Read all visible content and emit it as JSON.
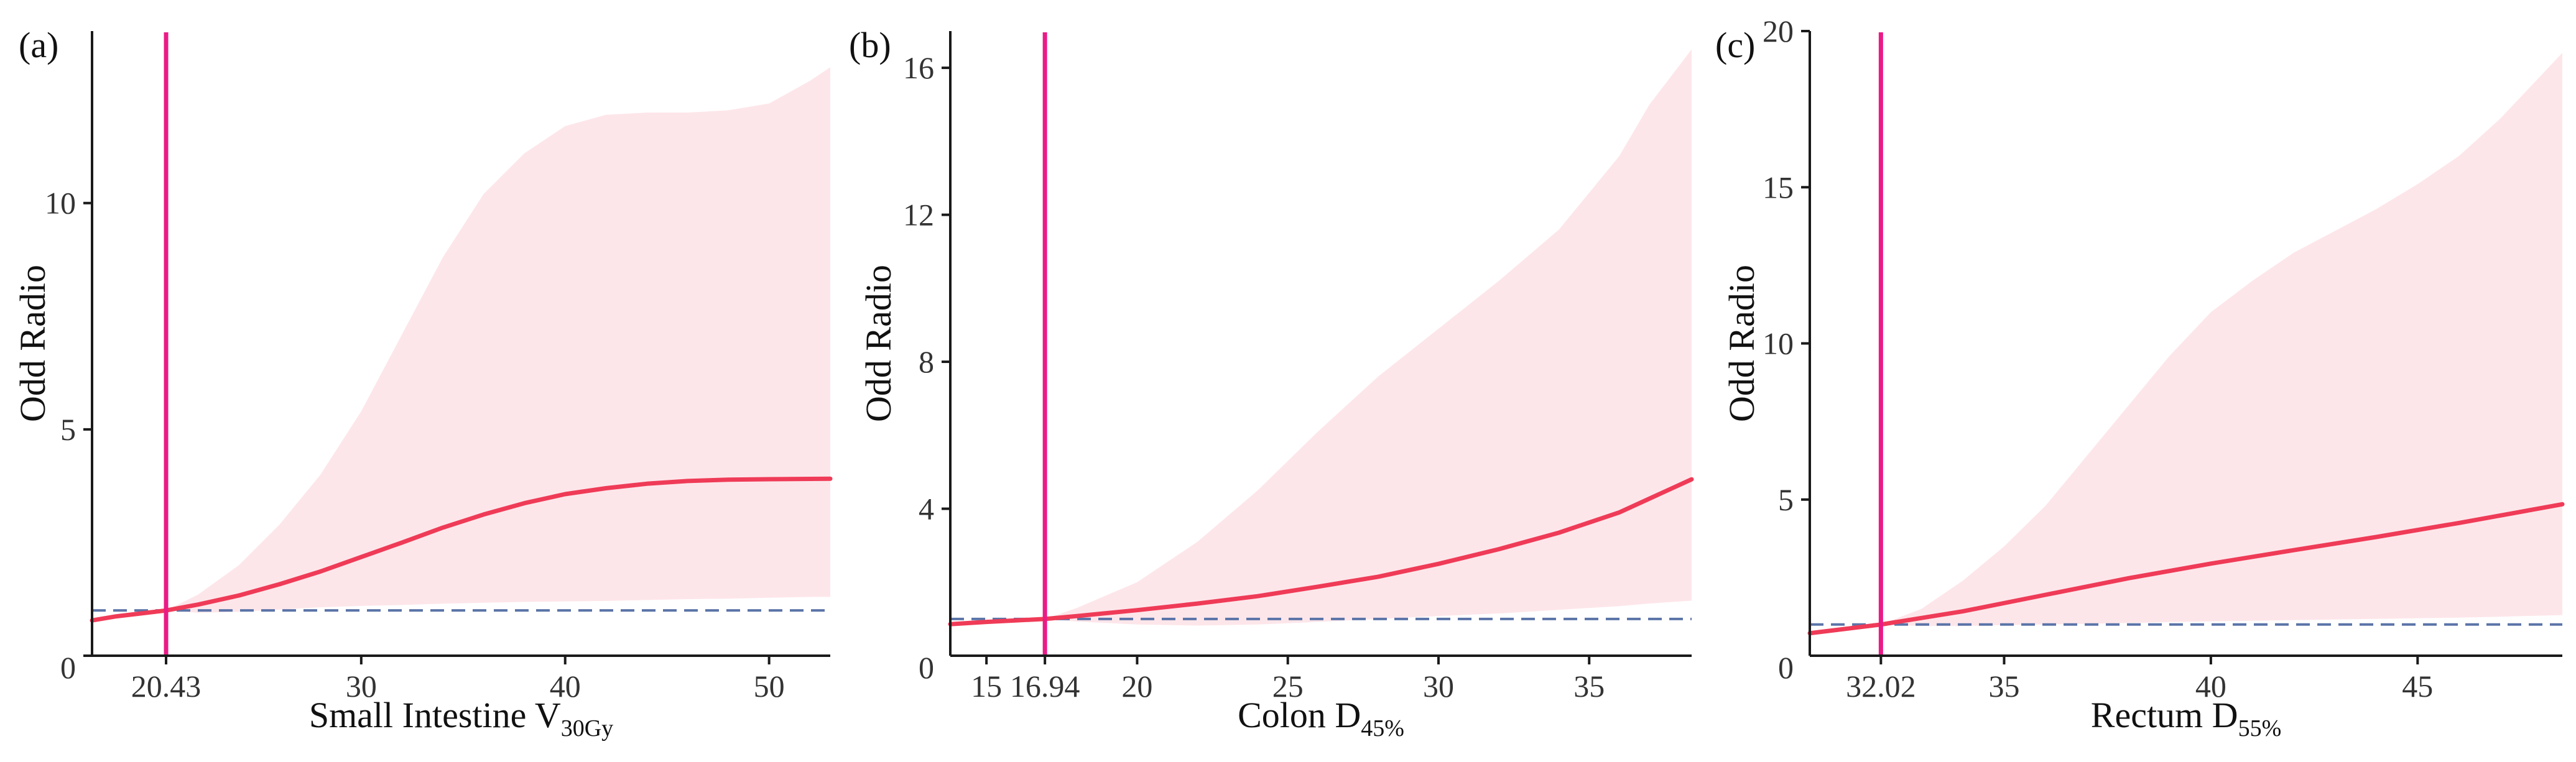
{
  "colors": {
    "curve": "#ef3b57",
    "band": "#fde6ea",
    "cutoff": "#ea1b87",
    "reference": "#5b74a8",
    "axis": "#1a1a1a"
  },
  "chart_data": [
    {
      "type": "line",
      "panel_label": "(a)",
      "xlabel_main": "Small Intestine V",
      "xlabel_sub": "30Gy",
      "ylabel": "Odd Radio",
      "xlim": [
        16.8,
        53
      ],
      "ylim": [
        0,
        13.8
      ],
      "xticks": [
        30,
        40,
        50
      ],
      "yticks": [
        0,
        5,
        10
      ],
      "zero_label": "0",
      "cutoff": 20.43,
      "cutoff_label": "20.43",
      "reference_y": 1,
      "series": [
        {
          "name": "Odd Radio",
          "x": [
            16.8,
            18,
            20.43,
            22,
            24,
            26,
            28,
            30,
            32,
            34,
            36,
            38,
            40,
            42,
            44,
            46,
            48,
            50,
            53
          ],
          "y": [
            0.78,
            0.87,
            1.0,
            1.13,
            1.33,
            1.58,
            1.86,
            2.18,
            2.5,
            2.83,
            3.12,
            3.37,
            3.57,
            3.7,
            3.8,
            3.86,
            3.89,
            3.9,
            3.91
          ]
        }
      ],
      "ci_band": {
        "x": [
          20.43,
          22,
          24,
          26,
          28,
          30,
          32,
          34,
          36,
          38,
          40,
          42,
          44,
          46,
          48,
          50,
          52,
          53
        ],
        "upper": [
          1.0,
          1.35,
          2.0,
          2.9,
          4.0,
          5.4,
          7.1,
          8.8,
          10.2,
          11.1,
          11.7,
          11.95,
          12.0,
          12.0,
          12.05,
          12.2,
          12.7,
          13.0
        ],
        "lower": [
          1.0,
          0.95,
          0.97,
          1.02,
          1.07,
          1.1,
          1.12,
          1.15,
          1.17,
          1.19,
          1.2,
          1.21,
          1.23,
          1.25,
          1.26,
          1.28,
          1.3,
          1.3
        ]
      }
    },
    {
      "type": "line",
      "panel_label": "(b)",
      "xlabel_main": "Colon D",
      "xlabel_sub": "45%",
      "ylabel": "Odd Radio",
      "xlim": [
        13.8,
        38.4
      ],
      "ylim": [
        0,
        17
      ],
      "xticks": [
        15,
        20,
        25,
        30,
        35
      ],
      "yticks": [
        4,
        8,
        12,
        16
      ],
      "zero_label": "0",
      "cutoff": 16.94,
      "cutoff_label": "16.94",
      "reference_y": 1,
      "series": [
        {
          "name": "Odd Radio",
          "x": [
            13.8,
            15,
            16.94,
            18,
            20,
            22,
            24,
            26,
            28,
            30,
            32,
            34,
            36,
            38.4
          ],
          "y": [
            0.86,
            0.92,
            1.0,
            1.08,
            1.24,
            1.42,
            1.62,
            1.88,
            2.15,
            2.5,
            2.9,
            3.35,
            3.9,
            4.8
          ]
        }
      ],
      "ci_band": {
        "x": [
          16.94,
          18,
          20,
          22,
          24,
          26,
          28,
          30,
          32,
          34,
          36,
          37,
          38.4
        ],
        "upper": [
          1.0,
          1.3,
          2.0,
          3.1,
          4.5,
          6.1,
          7.6,
          8.9,
          10.2,
          11.6,
          13.6,
          15.0,
          16.5
        ],
        "lower": [
          1.0,
          0.93,
          0.85,
          0.82,
          0.85,
          0.92,
          1.0,
          1.08,
          1.15,
          1.25,
          1.35,
          1.42,
          1.5
        ]
      }
    },
    {
      "type": "line",
      "panel_label": "(c)",
      "xlabel_main": "Rectum D",
      "xlabel_sub": "55%",
      "ylabel": "Odd Radio",
      "xlim": [
        30.3,
        48.5
      ],
      "ylim": [
        0,
        20
      ],
      "xticks": [
        35,
        40,
        45
      ],
      "yticks": [
        5,
        10,
        15,
        20
      ],
      "zero_label": "0",
      "cutoff": 32.02,
      "cutoff_label": "32.02",
      "reference_y": 1,
      "series": [
        {
          "name": "Odd Radio",
          "x": [
            30.3,
            32.02,
            34,
            36,
            38,
            40,
            42,
            44,
            46,
            48.5
          ],
          "y": [
            0.72,
            1.0,
            1.42,
            1.95,
            2.48,
            2.95,
            3.38,
            3.8,
            4.25,
            4.85
          ]
        }
      ],
      "ci_band": {
        "x": [
          32.02,
          33,
          34,
          35,
          36,
          37,
          38,
          39,
          40,
          41,
          42,
          43,
          44,
          45,
          46,
          47,
          48.5
        ],
        "upper": [
          1.0,
          1.5,
          2.4,
          3.5,
          4.8,
          6.4,
          8.0,
          9.6,
          11.0,
          12.0,
          12.9,
          13.6,
          14.3,
          15.1,
          16.0,
          17.2,
          19.3
        ],
        "lower": [
          1.0,
          0.95,
          0.95,
          0.98,
          1.0,
          1.02,
          1.05,
          1.08,
          1.1,
          1.12,
          1.14,
          1.16,
          1.18,
          1.2,
          1.22,
          1.25,
          1.3
        ]
      }
    }
  ]
}
